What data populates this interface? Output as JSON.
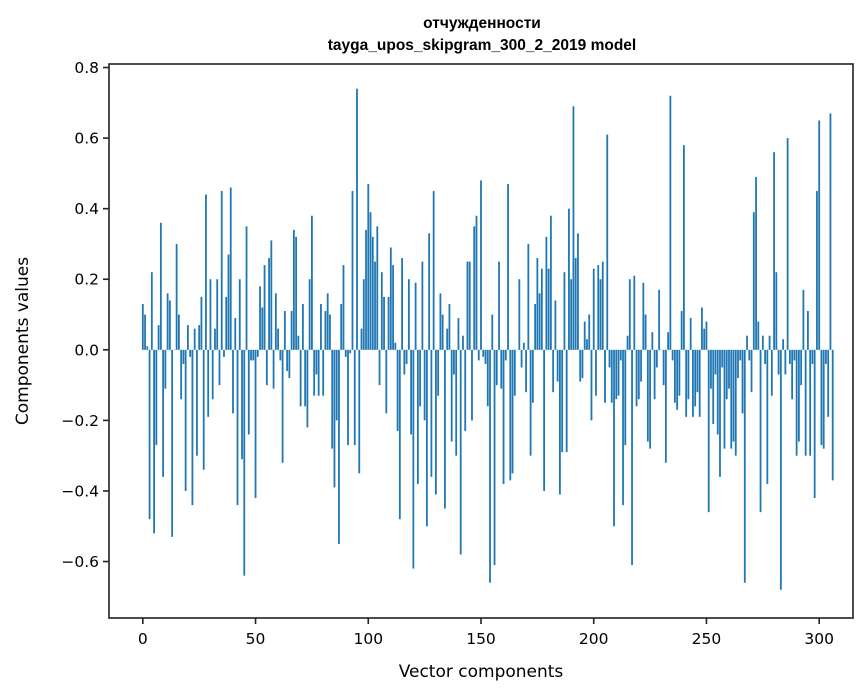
{
  "chart_data": {
    "type": "bar",
    "title": "отчужденности",
    "subtitle": "tayga_upos_skipgram_300_2_2019 model",
    "xlabel": "Vector components",
    "ylabel": "Components values",
    "xlim": [
      -15,
      315
    ],
    "ylim": [
      -0.76,
      0.81
    ],
    "xticks": [
      0,
      50,
      100,
      150,
      200,
      250,
      300
    ],
    "xtick_labels": [
      "0",
      "50",
      "100",
      "150",
      "200",
      "250",
      "300"
    ],
    "yticks": [
      -0.6,
      -0.4,
      -0.2,
      0.0,
      0.2,
      0.4,
      0.6,
      0.8
    ],
    "ytick_labels": [
      "−0.6",
      "−0.4",
      "−0.2",
      "0.0",
      "0.2",
      "0.4",
      "0.6",
      "0.8"
    ],
    "grid": false,
    "bar_color": "#1f77b4",
    "series": [
      {
        "name": "components",
        "values": [
          0.13,
          0.1,
          0.01,
          -0.48,
          0.22,
          -0.52,
          -0.27,
          0.07,
          0.36,
          -0.36,
          -0.11,
          0.16,
          0.14,
          -0.53,
          0.0,
          0.3,
          0.1,
          -0.14,
          -0.04,
          -0.4,
          0.07,
          -0.02,
          -0.44,
          0.06,
          -0.3,
          0.07,
          0.15,
          -0.34,
          0.44,
          -0.19,
          0.2,
          -0.14,
          0.06,
          0.2,
          -0.1,
          0.45,
          -0.02,
          0.15,
          0.27,
          0.46,
          -0.18,
          0.09,
          -0.44,
          0.2,
          -0.31,
          -0.64,
          0.35,
          -0.24,
          -0.03,
          -0.03,
          -0.42,
          -0.02,
          0.18,
          0.12,
          0.24,
          -0.1,
          0.26,
          0.31,
          -0.11,
          0.16,
          0.06,
          -0.03,
          -0.32,
          0.11,
          -0.06,
          -0.08,
          0.11,
          0.34,
          0.32,
          0.04,
          -0.16,
          0.13,
          -0.16,
          -0.22,
          0.2,
          0.38,
          -0.13,
          -0.07,
          -0.13,
          0.13,
          -0.13,
          0.11,
          0.16,
          0.1,
          -0.28,
          -0.39,
          -0.2,
          -0.55,
          0.13,
          0.24,
          -0.02,
          -0.27,
          -0.01,
          0.45,
          -0.27,
          0.74,
          -0.35,
          0.06,
          0.2,
          0.34,
          0.47,
          0.39,
          0.32,
          0.25,
          0.35,
          -0.1,
          0.22,
          0.15,
          -0.18,
          0.15,
          0.29,
          0.24,
          0.02,
          -0.23,
          -0.48,
          0.26,
          -0.07,
          -0.04,
          0.2,
          -0.24,
          -0.62,
          0.19,
          -0.38,
          -0.16,
          0.25,
          -0.2,
          -0.5,
          0.33,
          -0.36,
          0.45,
          -0.41,
          -0.13,
          0.16,
          0.1,
          -0.45,
          0.06,
          0.13,
          -0.26,
          -0.07,
          -0.3,
          0.09,
          -0.58,
          0.04,
          -0.23,
          0.25,
          0.25,
          -0.2,
          0.35,
          0.38,
          -0.03,
          0.48,
          -0.02,
          -0.04,
          -0.16,
          -0.66,
          0.1,
          -0.61,
          -0.1,
          0.25,
          -0.11,
          -0.38,
          -0.03,
          0.47,
          -0.37,
          -0.35,
          -0.13,
          0.0,
          0.2,
          -0.05,
          0.02,
          -0.12,
          0.3,
          -0.3,
          -0.15,
          0.13,
          0.26,
          0.16,
          0.23,
          -0.4,
          0.32,
          0.23,
          0.38,
          -0.12,
          0.14,
          -0.09,
          -0.41,
          -0.29,
          0.22,
          -0.29,
          0.4,
          0.2,
          0.69,
          0.26,
          0.33,
          -0.09,
          -0.08,
          0.08,
          0.03,
          0.1,
          -0.2,
          0.23,
          -0.13,
          0.24,
          0.2,
          0.25,
          -0.15,
          0.61,
          -0.05,
          -0.15,
          -0.5,
          -0.14,
          -0.13,
          -0.03,
          -0.44,
          -0.27,
          0.04,
          0.2,
          -0.61,
          0.21,
          -0.16,
          -0.14,
          -0.09,
          0.19,
          0.1,
          -0.26,
          -0.28,
          0.05,
          -0.14,
          -0.05,
          0.17,
          0.0,
          -0.1,
          -0.32,
          0.05,
          0.72,
          -0.03,
          -0.15,
          -0.17,
          -0.13,
          0.11,
          0.58,
          -0.19,
          -0.14,
          0.09,
          -0.19,
          -0.16,
          -0.12,
          -0.19,
          0.12,
          0.06,
          0.08,
          -0.46,
          -0.11,
          -0.21,
          -0.07,
          -0.24,
          -0.36,
          -0.05,
          -0.28,
          -0.14,
          -0.11,
          -0.28,
          -0.26,
          -0.3,
          -0.08,
          -0.03,
          -0.18,
          -0.66,
          0.04,
          -0.03,
          -0.12,
          0.39,
          0.49,
          0.08,
          -0.46,
          0.04,
          -0.04,
          -0.38,
          0.04,
          -0.13,
          0.56,
          0.22,
          -0.07,
          -0.68,
          0.03,
          -0.07,
          0.6,
          -0.04,
          -0.14,
          -0.03,
          -0.3,
          -0.26,
          -0.1,
          0.17,
          -0.3,
          0.11,
          -0.3,
          -0.04,
          -0.42,
          0.45,
          0.65,
          -0.27,
          -0.28,
          -0.04,
          -0.19,
          0.67,
          -0.37
        ]
      }
    ]
  }
}
